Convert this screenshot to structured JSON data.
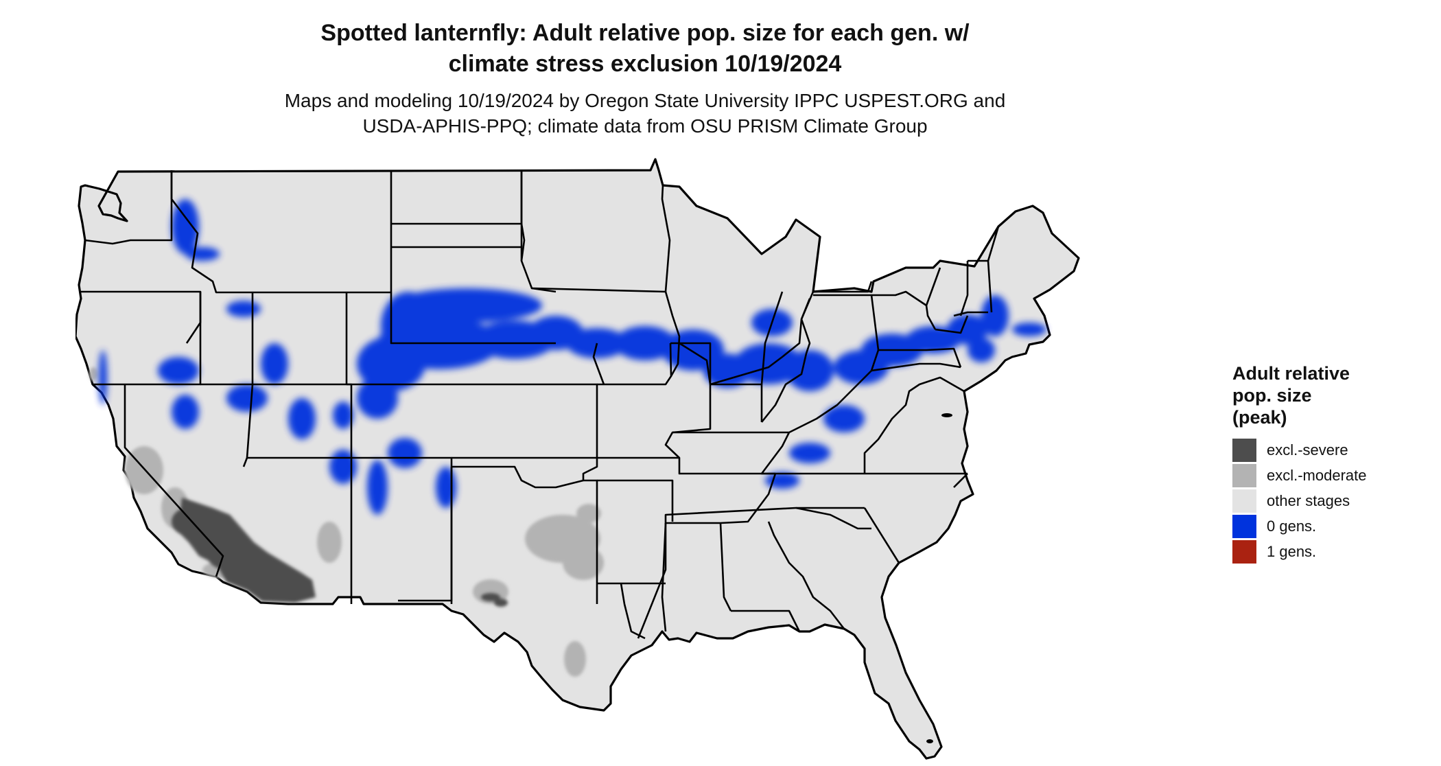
{
  "header": {
    "title_line1": "Spotted lanternfly: Adult relative pop. size for each gen. w/",
    "title_line2": "climate stress exclusion 10/19/2024",
    "subtitle_line1": "Maps and modeling 10/19/2024 by Oregon State University IPPC USPEST.ORG and",
    "subtitle_line2": "USDA-APHIS-PPQ; climate data from OSU PRISM Climate Group"
  },
  "map": {
    "land_color": "#e3e3e3",
    "border_color": "#000000"
  },
  "legend": {
    "title_line1": "Adult relative",
    "title_line2": "pop. size",
    "title_line3": "(peak)",
    "items": [
      {
        "label": "excl.-severe",
        "color": "#4d4d4d"
      },
      {
        "label": "excl.-moderate",
        "color": "#b3b3b3"
      },
      {
        "label": "other stages",
        "color": "#e3e3e3"
      },
      {
        "label": "0 gens.",
        "color": "#0033dd"
      },
      {
        "label": "1 gens.",
        "color": "#aa2211"
      }
    ]
  }
}
